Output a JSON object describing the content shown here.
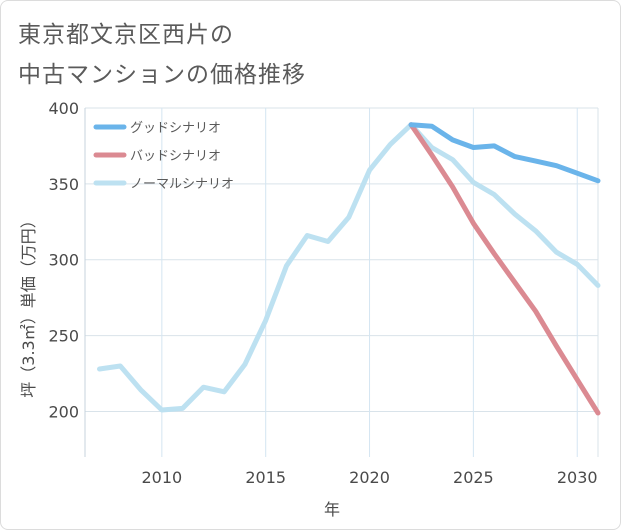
{
  "title_lines": [
    "東京都文京区西片の",
    "中古マンションの価格推移"
  ],
  "chart_data": {
    "type": "line",
    "xlabel": "年",
    "ylabel": "坪（3.3㎡）単価（万円）",
    "xlim": [
      2006.3,
      2031
    ],
    "ylim": [
      170,
      400
    ],
    "xticks": [
      2010,
      2015,
      2020,
      2025,
      2030
    ],
    "yticks": [
      200,
      250,
      300,
      350,
      400
    ],
    "grid": true,
    "legend_position": "top-left",
    "series": [
      {
        "name": "グッドシナリオ",
        "color": "#6ab4ea",
        "x": [
          2022,
          2023,
          2024,
          2025,
          2026,
          2027,
          2028,
          2029,
          2030,
          2031
        ],
        "y": [
          389,
          388,
          379,
          374,
          375,
          368,
          365,
          362,
          357,
          352
        ]
      },
      {
        "name": "バッドシナリオ",
        "color": "#db8a92",
        "x": [
          2022,
          2023,
          2024,
          2025,
          2026,
          2027,
          2028,
          2029,
          2030,
          2031
        ],
        "y": [
          389,
          369,
          348,
          324,
          304,
          285,
          266,
          243,
          221,
          199
        ]
      },
      {
        "name": "ノーマルシナリオ",
        "color": "#bde1f1",
        "x": [
          2007,
          2008,
          2009,
          2010,
          2011,
          2012,
          2013,
          2014,
          2015,
          2016,
          2017,
          2018,
          2019,
          2020,
          2021,
          2022,
          2023,
          2024,
          2025,
          2026,
          2027,
          2028,
          2029,
          2030,
          2031
        ],
        "y": [
          228,
          230,
          214,
          201,
          202,
          216,
          213,
          231,
          260,
          296,
          316,
          312,
          328,
          359,
          376,
          389,
          374,
          366,
          351,
          343,
          330,
          319,
          305,
          297,
          283
        ]
      }
    ]
  }
}
